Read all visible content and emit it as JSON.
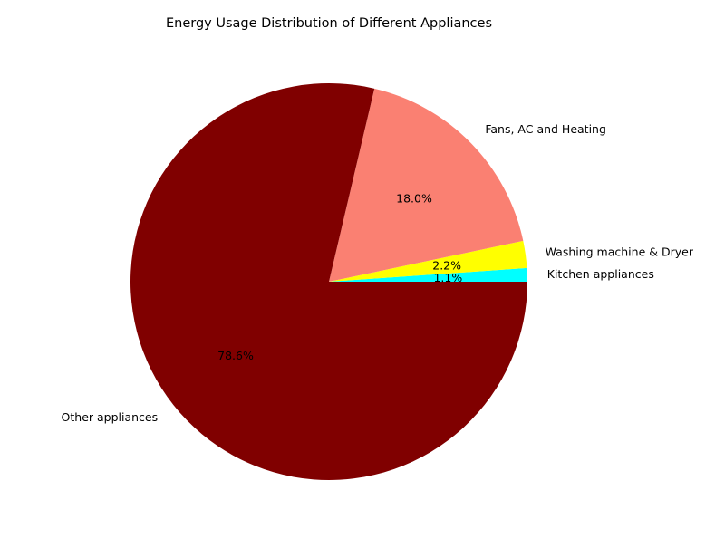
{
  "chart_data": {
    "type": "pie",
    "title": "Energy Usage Distribution of Different Appliances",
    "slices": [
      {
        "label": "Kitchen appliances",
        "value": 1.1,
        "pct_label": "1.1%",
        "color": "#00ffff"
      },
      {
        "label": "Washing machine & Dryer",
        "value": 2.2,
        "pct_label": "2.2%",
        "color": "#ffff00"
      },
      {
        "label": "Fans, AC and Heating",
        "value": 18.0,
        "pct_label": "18.0%",
        "color": "#fa8072"
      },
      {
        "label": "Other appliances",
        "value": 78.6,
        "pct_label": "78.6%",
        "color": "#800000"
      }
    ],
    "start_angle_deg": 0,
    "direction": "counterclockwise",
    "legend": "none"
  }
}
